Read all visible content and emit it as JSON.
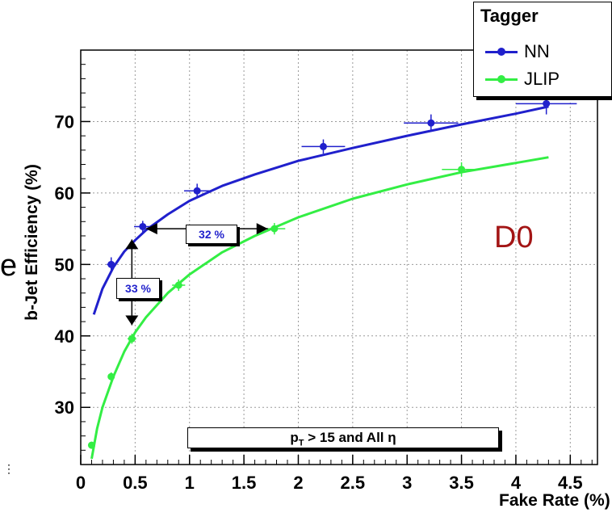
{
  "chart_data": {
    "type": "line",
    "xlabel": "Fake Rate (%)",
    "ylabel": "b-Jet Efficiency (%)",
    "xlim": [
      0,
      4.75
    ],
    "ylim": [
      22,
      80
    ],
    "x_ticks": [
      "0",
      "0.5",
      "1",
      "1.5",
      "2",
      "2.5",
      "3",
      "3.5",
      "4",
      "4.5"
    ],
    "y_ticks": [
      "30",
      "40",
      "50",
      "60",
      "70"
    ],
    "grid": true,
    "legend": {
      "title": "Tagger",
      "position": "top-right"
    },
    "series": [
      {
        "name": "NN",
        "color": "#2020cc",
        "points": [
          {
            "x": 0.28,
            "y": 50.0,
            "xerr": 0.04,
            "yerr": 1.0
          },
          {
            "x": 0.57,
            "y": 55.3,
            "xerr": 0.08,
            "yerr": 0.8
          },
          {
            "x": 1.07,
            "y": 60.3,
            "xerr": 0.12,
            "yerr": 1.0
          },
          {
            "x": 2.23,
            "y": 66.5,
            "xerr": 0.2,
            "yerr": 1.0
          },
          {
            "x": 3.22,
            "y": 69.8,
            "xerr": 0.25,
            "yerr": 1.2
          },
          {
            "x": 4.28,
            "y": 72.5,
            "xerr": 0.28,
            "yerr": 1.5
          }
        ],
        "fit_x": [
          0.12,
          0.2,
          0.3,
          0.4,
          0.5,
          0.6,
          0.8,
          1.0,
          1.3,
          1.6,
          2.0,
          2.5,
          3.0,
          3.5,
          4.0,
          4.3
        ],
        "fit_y": [
          43.0,
          46.6,
          49.6,
          51.8,
          53.4,
          54.8,
          57.0,
          58.9,
          61.0,
          62.6,
          64.5,
          66.3,
          68.0,
          69.6,
          71.1,
          72.1
        ]
      },
      {
        "name": "JLIP",
        "color": "#33ee44",
        "points": [
          {
            "x": 0.1,
            "y": 24.7,
            "xerr": 0.02,
            "yerr": 0.5
          },
          {
            "x": 0.28,
            "y": 34.3,
            "xerr": 0.03,
            "yerr": 0.6
          },
          {
            "x": 0.47,
            "y": 39.6,
            "xerr": 0.04,
            "yerr": 0.7
          },
          {
            "x": 0.9,
            "y": 47.1,
            "xerr": 0.06,
            "yerr": 0.8
          },
          {
            "x": 1.78,
            "y": 55.0,
            "xerr": 0.1,
            "yerr": 0.8
          },
          {
            "x": 3.5,
            "y": 63.3,
            "xerr": 0.18,
            "yerr": 1.0
          }
        ],
        "fit_x": [
          0.1,
          0.15,
          0.2,
          0.3,
          0.4,
          0.5,
          0.6,
          0.8,
          1.0,
          1.3,
          1.6,
          2.0,
          2.5,
          3.0,
          3.5,
          4.0,
          4.3
        ],
        "fit_y": [
          22.8,
          27.0,
          30.0,
          34.3,
          37.8,
          40.5,
          42.6,
          46.0,
          48.6,
          51.7,
          54.0,
          56.6,
          59.2,
          61.2,
          62.9,
          64.2,
          65.0
        ]
      }
    ],
    "annotations": [
      {
        "text": "32 %",
        "arrow_x": [
          0.6,
          1.72
        ],
        "arrow_y": 55.0
      },
      {
        "text": "33 %",
        "arrow_x": 0.47,
        "arrow_y": [
          41.5,
          53.5
        ]
      }
    ],
    "cut_label": {
      "pre": "p",
      "sub": "T",
      "post": " > 15 and  All η"
    },
    "experiment_label": "D0",
    "stray_text": "e",
    "stray_mark": "⋮"
  }
}
